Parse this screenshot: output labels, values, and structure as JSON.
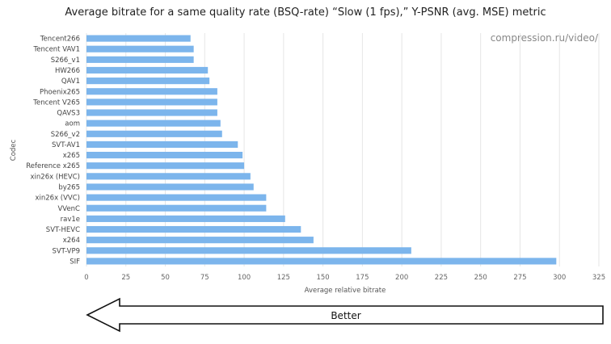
{
  "colors": {
    "bar": "#7cb5ec"
  },
  "watermark": "compression.ru/video/",
  "better_arrow": {
    "label": "Better",
    "direction": "left"
  },
  "chart_data": {
    "type": "bar",
    "orientation": "horizontal",
    "title": "Average bitrate for a same quality rate (BSQ-rate) “Slow (1 fps),” Y-PSNR (avg. MSE) metric",
    "xlabel": "Average relative bitrate",
    "ylabel": "Codec",
    "xlim": [
      0,
      325
    ],
    "xticks": [
      0,
      25,
      50,
      75,
      100,
      125,
      150,
      175,
      200,
      225,
      250,
      275,
      300,
      325
    ],
    "grid": true,
    "categories": [
      "Tencent266",
      "Tencent VAV1",
      "S266_v1",
      "HW266",
      "QAV1",
      "Phoenix265",
      "Tencent V265",
      "QAVS3",
      "aom",
      "S266_v2",
      "SVT-AV1",
      "x265",
      "Reference x265",
      "xin26x (HEVC)",
      "by265",
      "xin26x (VVC)",
      "VVenC",
      "rav1e",
      "SVT-HEVC",
      "x264",
      "SVT-VP9",
      "SIF"
    ],
    "values": [
      66,
      68,
      68,
      77,
      78,
      83,
      83,
      83,
      85,
      86,
      96,
      99,
      100,
      104,
      106,
      114,
      114,
      126,
      136,
      144,
      206,
      298
    ]
  }
}
